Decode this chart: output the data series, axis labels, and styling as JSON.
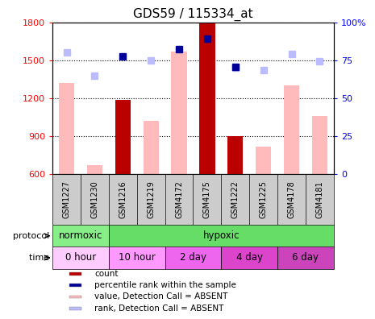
{
  "title": "GDS59 / 115334_at",
  "samples": [
    "GSM1227",
    "GSM1230",
    "GSM1216",
    "GSM1219",
    "GSM4172",
    "GSM4175",
    "GSM1222",
    "GSM1225",
    "GSM4178",
    "GSM4181"
  ],
  "value_absent": [
    1320,
    670,
    null,
    1020,
    1570,
    null,
    null,
    820,
    1300,
    1060
  ],
  "count_present": [
    null,
    null,
    1190,
    null,
    null,
    1790,
    900,
    null,
    null,
    null
  ],
  "rank_absent": [
    1565,
    1380,
    null,
    1500,
    null,
    null,
    1440,
    1420,
    1550,
    1490
  ],
  "percentile_present": [
    null,
    null,
    1530,
    null,
    1590,
    1670,
    1450,
    null,
    null,
    null
  ],
  "ylim_left": [
    600,
    1800
  ],
  "ylim_right": [
    0,
    100
  ],
  "yticks_left": [
    600,
    900,
    1200,
    1500,
    1800
  ],
  "yticks_right": [
    0,
    25,
    50,
    75,
    100
  ],
  "protocol_groups": [
    {
      "label": "normoxic",
      "color": "#88ee88",
      "span": [
        0,
        2
      ]
    },
    {
      "label": "hypoxic",
      "color": "#66dd66",
      "span": [
        2,
        10
      ]
    }
  ],
  "time_groups": [
    {
      "label": "0 hour",
      "color": "#ffccff",
      "span": [
        0,
        2
      ]
    },
    {
      "label": "10 hour",
      "color": "#ff99ff",
      "span": [
        2,
        4
      ]
    },
    {
      "label": "2 day",
      "color": "#ee66ee",
      "span": [
        4,
        6
      ]
    },
    {
      "label": "4 day",
      "color": "#dd44cc",
      "span": [
        6,
        8
      ]
    },
    {
      "label": "6 day",
      "color": "#cc44bb",
      "span": [
        8,
        10
      ]
    }
  ],
  "bar_width": 0.55,
  "color_count": "#bb0000",
  "color_rank_absent": "#bbbbff",
  "color_value_absent": "#ffbbbb",
  "color_percentile": "#000099",
  "background_color": "#ffffff",
  "plot_bg": "#ffffff",
  "xtick_bg": "#cccccc",
  "legend_items": [
    {
      "label": "count",
      "color": "#bb0000"
    },
    {
      "label": "percentile rank within the sample",
      "color": "#000099"
    },
    {
      "label": "value, Detection Call = ABSENT",
      "color": "#ffbbbb"
    },
    {
      "label": "rank, Detection Call = ABSENT",
      "color": "#bbbbff"
    }
  ]
}
